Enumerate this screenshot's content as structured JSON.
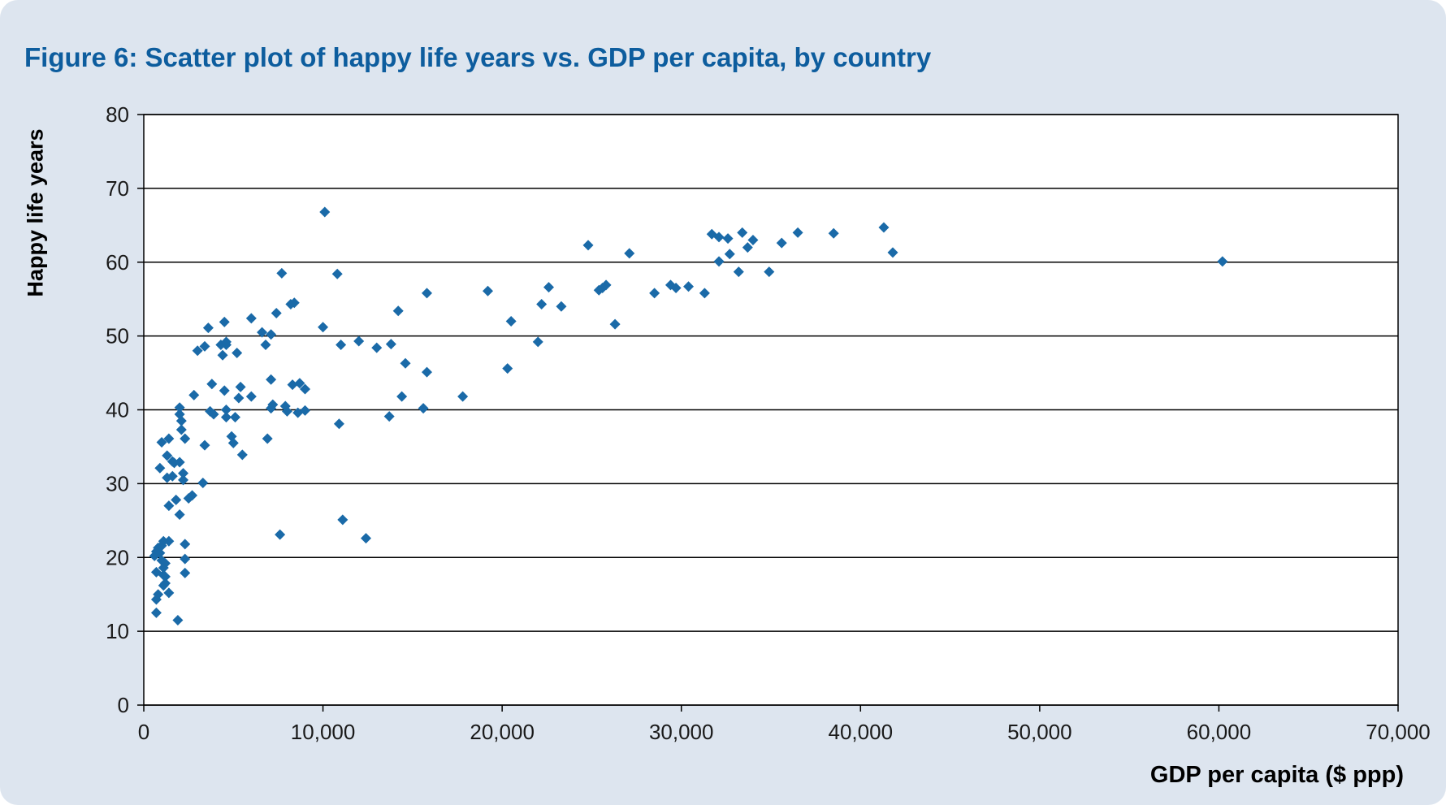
{
  "colors": {
    "background": "#dde5ef",
    "title": "#0d5d9e",
    "marker": "#1a6aa8",
    "grid": "#000000"
  },
  "chart_data": {
    "type": "scatter",
    "title": "Figure 6: Scatter plot of happy life years vs. GDP per capita, by country",
    "xlabel": "GDP per capita ($ ppp)",
    "ylabel": "Happy life years",
    "xlim": [
      0,
      70000
    ],
    "ylim": [
      0,
      80
    ],
    "xticks": [
      0,
      10000,
      20000,
      30000,
      40000,
      50000,
      60000,
      70000
    ],
    "xtick_labels": [
      "0",
      "10,000",
      "20,000",
      "30,000",
      "40,000",
      "50,000",
      "60,000",
      "70,000"
    ],
    "yticks": [
      0,
      10,
      20,
      30,
      40,
      50,
      60,
      70,
      80
    ],
    "ytick_labels": [
      "0",
      "10",
      "20",
      "30",
      "40",
      "50",
      "60",
      "70",
      "80"
    ],
    "grid": "horizontal",
    "marker": "diamond",
    "points": [
      [
        700,
        12.5
      ],
      [
        700,
        14.3
      ],
      [
        800,
        15.0
      ],
      [
        700,
        18.0
      ],
      [
        600,
        20.2
      ],
      [
        700,
        20.8
      ],
      [
        800,
        21.3
      ],
      [
        900,
        20.6
      ],
      [
        1000,
        21.6
      ],
      [
        1100,
        22.2
      ],
      [
        1000,
        19.6
      ],
      [
        1200,
        19.2
      ],
      [
        1100,
        18.6
      ],
      [
        1100,
        17.6
      ],
      [
        1200,
        16.5
      ],
      [
        1100,
        16.2
      ],
      [
        1400,
        15.2
      ],
      [
        1200,
        17.4
      ],
      [
        1400,
        22.2
      ],
      [
        900,
        32.1
      ],
      [
        1000,
        35.6
      ],
      [
        1300,
        33.8
      ],
      [
        1400,
        36.1
      ],
      [
        1300,
        30.8
      ],
      [
        1600,
        33.0
      ],
      [
        1700,
        32.8
      ],
      [
        1600,
        31.0
      ],
      [
        1400,
        27.0
      ],
      [
        1800,
        27.8
      ],
      [
        2000,
        25.8
      ],
      [
        2000,
        40.3
      ],
      [
        2000,
        39.4
      ],
      [
        2100,
        38.5
      ],
      [
        2100,
        37.3
      ],
      [
        2300,
        36.1
      ],
      [
        2000,
        32.9
      ],
      [
        2200,
        31.4
      ],
      [
        2200,
        30.5
      ],
      [
        2500,
        28.0
      ],
      [
        2700,
        28.4
      ],
      [
        2300,
        21.8
      ],
      [
        2300,
        19.8
      ],
      [
        2300,
        17.9
      ],
      [
        1900,
        11.5
      ],
      [
        2800,
        42.0
      ],
      [
        3000,
        48.0
      ],
      [
        3400,
        48.6
      ],
      [
        3600,
        51.1
      ],
      [
        3400,
        35.2
      ],
      [
        3300,
        30.1
      ],
      [
        3700,
        39.8
      ],
      [
        3900,
        39.4
      ],
      [
        3800,
        43.5
      ],
      [
        4300,
        48.8
      ],
      [
        4400,
        47.4
      ],
      [
        4600,
        48.8
      ],
      [
        4500,
        51.9
      ],
      [
        4600,
        49.2
      ],
      [
        5200,
        47.7
      ],
      [
        4500,
        42.6
      ],
      [
        4600,
        40.0
      ],
      [
        4600,
        39.0
      ],
      [
        5100,
        39.0
      ],
      [
        4900,
        36.4
      ],
      [
        5000,
        35.5
      ],
      [
        5300,
        41.6
      ],
      [
        5400,
        43.1
      ],
      [
        5500,
        33.9
      ],
      [
        6000,
        41.8
      ],
      [
        6000,
        52.4
      ],
      [
        6600,
        50.5
      ],
      [
        6800,
        48.8
      ],
      [
        7100,
        50.2
      ],
      [
        7400,
        53.1
      ],
      [
        6900,
        36.1
      ],
      [
        7100,
        44.1
      ],
      [
        7100,
        40.2
      ],
      [
        7200,
        40.7
      ],
      [
        7700,
        58.5
      ],
      [
        8200,
        54.3
      ],
      [
        8400,
        54.5
      ],
      [
        8300,
        43.4
      ],
      [
        8700,
        43.6
      ],
      [
        7900,
        40.5
      ],
      [
        8000,
        39.8
      ],
      [
        8600,
        39.6
      ],
      [
        9000,
        42.8
      ],
      [
        9000,
        39.9
      ],
      [
        7600,
        23.1
      ],
      [
        10000,
        51.2
      ],
      [
        10100,
        66.8
      ],
      [
        10800,
        58.4
      ],
      [
        11000,
        48.8
      ],
      [
        10900,
        38.1
      ],
      [
        11100,
        25.1
      ],
      [
        12000,
        49.3
      ],
      [
        12400,
        22.6
      ],
      [
        13000,
        48.4
      ],
      [
        13700,
        39.1
      ],
      [
        13800,
        48.9
      ],
      [
        14200,
        53.4
      ],
      [
        14400,
        41.8
      ],
      [
        14600,
        46.3
      ],
      [
        15600,
        40.2
      ],
      [
        15800,
        55.8
      ],
      [
        15800,
        45.1
      ],
      [
        17800,
        41.8
      ],
      [
        19200,
        56.1
      ],
      [
        20300,
        45.6
      ],
      [
        20500,
        52.0
      ],
      [
        22000,
        49.2
      ],
      [
        22200,
        54.3
      ],
      [
        22600,
        56.6
      ],
      [
        23300,
        54.0
      ],
      [
        24800,
        62.3
      ],
      [
        25400,
        56.2
      ],
      [
        25600,
        56.5
      ],
      [
        25800,
        56.9
      ],
      [
        26300,
        51.6
      ],
      [
        27100,
        61.2
      ],
      [
        28500,
        55.8
      ],
      [
        29400,
        56.9
      ],
      [
        29700,
        56.5
      ],
      [
        30400,
        56.7
      ],
      [
        31300,
        55.8
      ],
      [
        31700,
        63.8
      ],
      [
        32100,
        63.4
      ],
      [
        32600,
        63.2
      ],
      [
        32100,
        60.1
      ],
      [
        32700,
        61.1
      ],
      [
        33200,
        58.7
      ],
      [
        33400,
        64.0
      ],
      [
        33700,
        62.0
      ],
      [
        34000,
        63.0
      ],
      [
        34900,
        58.7
      ],
      [
        35600,
        62.6
      ],
      [
        36500,
        64.0
      ],
      [
        38500,
        63.9
      ],
      [
        41300,
        64.7
      ],
      [
        41800,
        61.3
      ],
      [
        60200,
        60.1
      ]
    ]
  }
}
